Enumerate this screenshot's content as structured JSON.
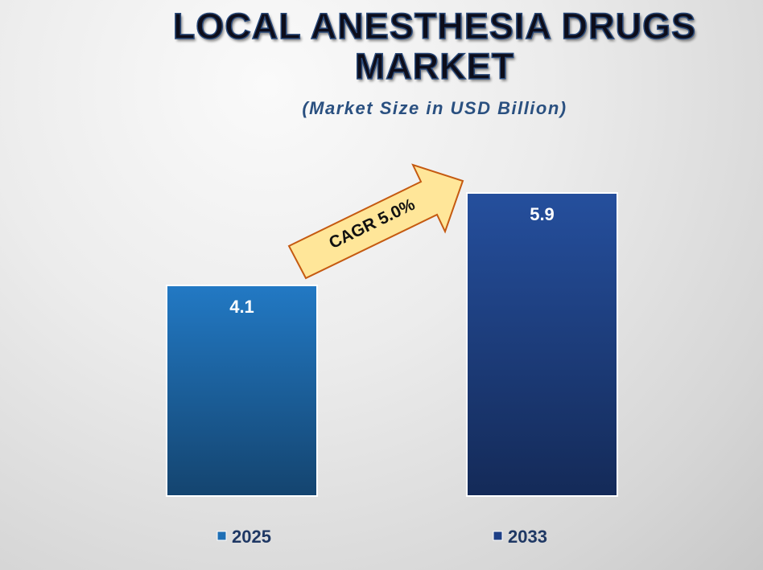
{
  "chart_data": {
    "type": "bar",
    "title": "LOCAL ANESTHESIA DRUGS MARKET",
    "subtitle": "(Market Size in USD Billion)",
    "categories": [
      "2025",
      "2033"
    ],
    "values": [
      4.1,
      5.9
    ],
    "data_labels": [
      "4.1",
      "5.9"
    ],
    "colors": [
      "#1f6fb5",
      "#1e3f86"
    ],
    "annotation": "CAGR 5.0%",
    "legend_placement": "bottom",
    "grid": false,
    "ylim": [
      0,
      5.9
    ]
  }
}
